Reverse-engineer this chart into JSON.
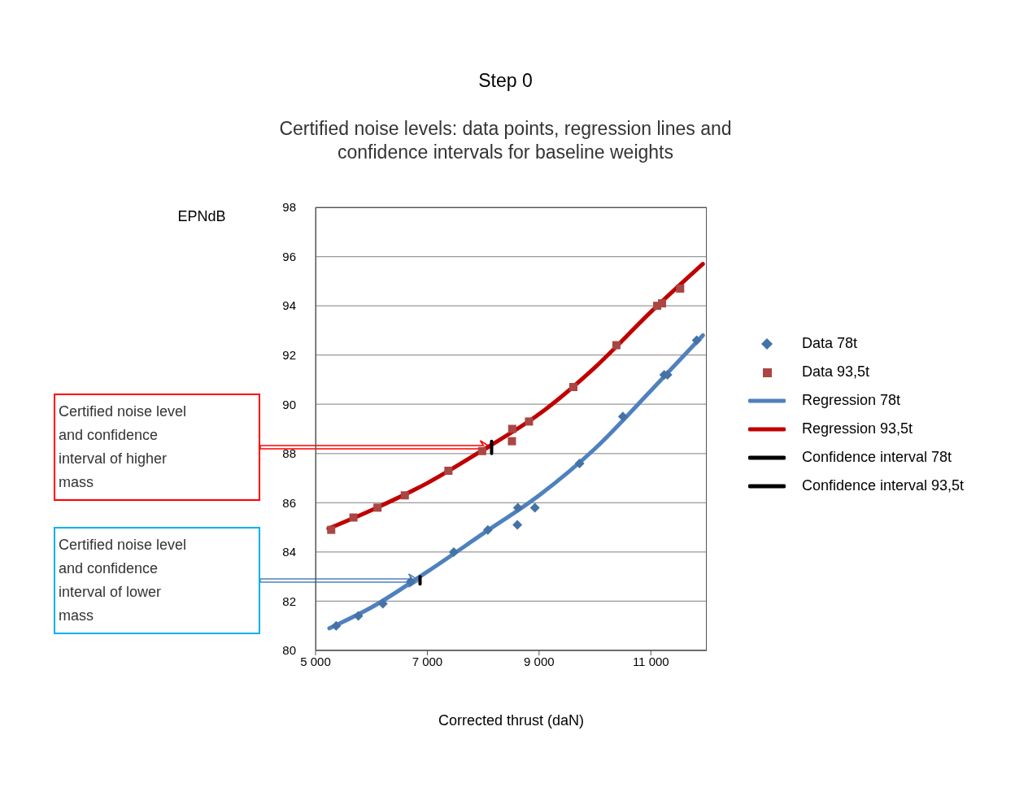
{
  "chart_data": {
    "type": "scatter",
    "title": "Step 0",
    "subtitle": "Certified noise levels: data points, regression lines and\nconfidence intervals for baseline weights",
    "xlabel": "Corrected thrust (daN)",
    "ylabel": "EPNdB",
    "xlim": [
      5000,
      12000
    ],
    "xticks": [
      {
        "value": 5000,
        "label": "5 000"
      },
      {
        "value": 7000,
        "label": "7 000"
      },
      {
        "value": 9000,
        "label": "9 000"
      },
      {
        "value": 11000,
        "label": "11 000"
      }
    ],
    "ylim": [
      80,
      98
    ],
    "yticks": [
      80,
      82,
      84,
      86,
      88,
      90,
      92,
      94,
      96,
      98
    ],
    "grid": "y",
    "legend": "right",
    "series": [
      {
        "name": "Data 78t",
        "type": "scatter",
        "marker": "diamond",
        "color": "#4572a7",
        "x": [
          5368,
          5765,
          6205,
          6703,
          7473,
          8083,
          8611,
          8620,
          8925,
          9724,
          10499,
          11239,
          11297,
          11820
        ],
        "values": [
          81.0,
          81.4,
          81.9,
          82.8,
          84.0,
          84.9,
          85.1,
          85.8,
          85.8,
          87.6,
          89.5,
          91.2,
          91.2,
          92.6
        ]
      },
      {
        "name": "Data 93,5t",
        "type": "scatter",
        "marker": "square",
        "color": "#aa4643",
        "x": [
          5280,
          5678,
          6108,
          6597,
          7377,
          7981,
          8514,
          8519,
          8819,
          9613,
          10383,
          11113,
          11200,
          11524
        ],
        "values": [
          84.9,
          85.4,
          85.8,
          86.3,
          87.3,
          88.1,
          88.5,
          89.0,
          89.3,
          90.7,
          92.4,
          94.0,
          94.1,
          94.7
        ]
      },
      {
        "name": "Regression 78t",
        "type": "line",
        "marker": "none",
        "color": "#4f81bd",
        "x": [
          5247,
          6000,
          7000,
          8000,
          9000,
          10000,
          11000,
          11930
        ],
        "values": [
          80.9,
          81.75,
          83.2,
          84.75,
          86.3,
          88.2,
          90.55,
          92.8
        ]
      },
      {
        "name": "Regression 93,5t",
        "type": "line",
        "marker": "none",
        "color": "#c00000",
        "x": [
          5230,
          6000,
          7000,
          8000,
          9000,
          10000,
          11000,
          11930
        ],
        "values": [
          84.95,
          85.7,
          86.8,
          88.15,
          89.6,
          91.5,
          93.75,
          95.7
        ]
      },
      {
        "name": "Confidence interval 78t",
        "type": "line",
        "marker": "none",
        "color": "#000000",
        "x": [
          6870,
          6870
        ],
        "values": [
          82.7,
          83.0
        ]
      },
      {
        "name": "Confidence interval 93,5t",
        "type": "line",
        "marker": "none",
        "color": "#000000",
        "x": [
          8150,
          8150
        ],
        "values": [
          88.0,
          88.5
        ]
      }
    ],
    "annotations": [
      "Certified noise level and confidence interval of higher mass",
      "Certified noise level and confidence interval of lower mass"
    ]
  }
}
